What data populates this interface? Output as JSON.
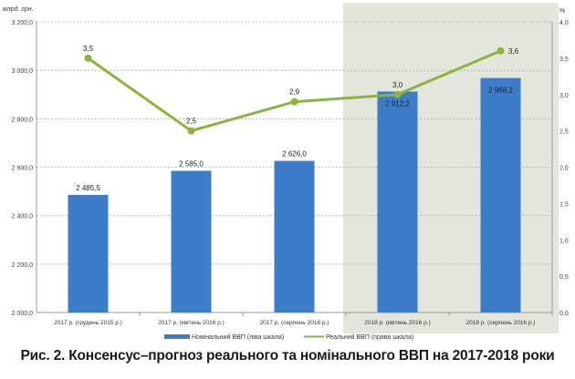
{
  "chart_data": {
    "type": "bar+line",
    "title": "Рис. 2. Консенсус–прогноз реального та номінального ВВП на 2017-2018 роки",
    "ylabel_left": "млрд. грн.",
    "ylabel_right": "%",
    "ylim_left": [
      2000,
      3200
    ],
    "ylim_right": [
      0,
      4
    ],
    "yticks_left": [
      "2 000,0",
      "2 200,0",
      "2 400,0",
      "2 600,0",
      "2 800,0",
      "3 000,0",
      "3 200,0"
    ],
    "yticks_right": [
      "0,0",
      "0,5",
      "1,0",
      "1,5",
      "2,0",
      "2,5",
      "3,0",
      "3,5",
      "4,0"
    ],
    "grid": true,
    "legend_position": "bottom",
    "categories": [
      "2017 р. (грудень 2015 р.)",
      "2017 р. (квітень 2016 р.)",
      "2017 р. (серпень 2016 р.)",
      "2018 р. (квітень 2016 р.)",
      "2018 р. (серпень 2016 р.)"
    ],
    "highlighted_categories": [
      3,
      4
    ],
    "series": [
      {
        "name": "Номінальний ВВП (ліва шкала)",
        "type": "bar",
        "axis": "left",
        "color": "#3d7cc9",
        "values": [
          2485.5,
          2585.0,
          2626.0,
          2912.2,
          2968.2
        ],
        "labels": [
          "2 485,5",
          "2 585,0",
          "2 626,0",
          "2 912,2",
          "2 968,2"
        ]
      },
      {
        "name": "Реальний ВВП (права шкала)",
        "type": "line",
        "axis": "right",
        "color": "#8db43e",
        "values": [
          3.5,
          2.5,
          2.9,
          3.0,
          3.6
        ],
        "labels": [
          "3,5",
          "2,5",
          "2,9",
          "3,0",
          "3,6"
        ]
      }
    ],
    "highlight_color": "#e4e6dc"
  }
}
